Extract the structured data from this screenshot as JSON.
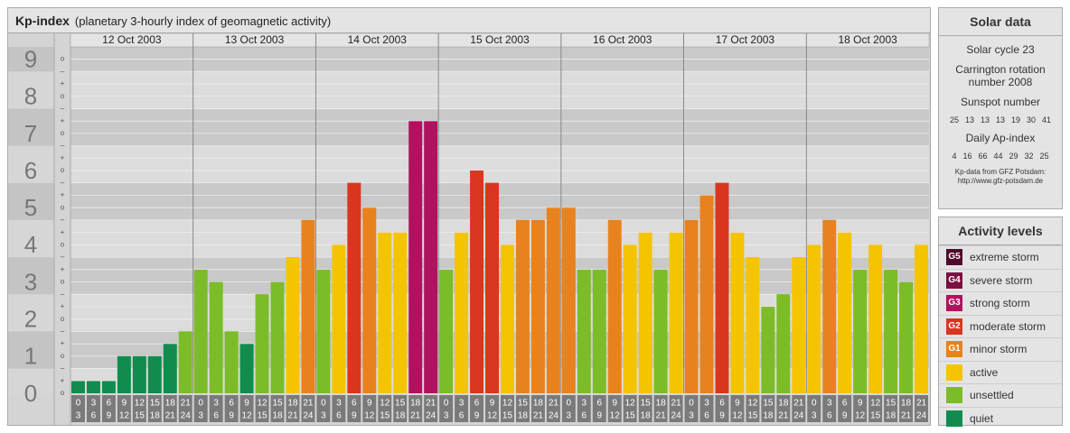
{
  "chart_data": {
    "type": "bar",
    "title": "Kp-index",
    "subtitle": "(planetary 3-hourly index of geomagnetic activity)",
    "days": [
      "12 Oct 2003",
      "13 Oct 2003",
      "14 Oct 2003",
      "15 Oct 2003",
      "16 Oct 2003",
      "17 Oct 2003",
      "18 Oct 2003"
    ],
    "hour_slots": [
      {
        "from": "0",
        "to": "3"
      },
      {
        "from": "3",
        "to": "6"
      },
      {
        "from": "6",
        "to": "9"
      },
      {
        "from": "9",
        "to": "12"
      },
      {
        "from": "12",
        "to": "15"
      },
      {
        "from": "15",
        "to": "18"
      },
      {
        "from": "18",
        "to": "21"
      },
      {
        "from": "21",
        "to": "24"
      }
    ],
    "values": [
      0.33,
      0.33,
      0.33,
      1,
      1,
      1,
      1.33,
      1.67,
      3.33,
      3,
      1.67,
      1.33,
      2.67,
      3,
      3.67,
      4.67,
      3.33,
      4,
      5.67,
      5,
      4.33,
      4.33,
      7.33,
      7.33,
      3.33,
      4.33,
      6,
      5.67,
      4,
      4.67,
      4.67,
      5,
      5,
      3.33,
      3.33,
      4.67,
      4,
      4.33,
      3.33,
      4.33,
      4.67,
      5.33,
      5.67,
      4.33,
      3.67,
      2.33,
      2.67,
      3.67,
      4,
      4.67,
      4.33,
      3.33,
      4,
      3.33,
      3,
      4
    ],
    "colors": [
      "#118c4e",
      "#118c4e",
      "#118c4e",
      "#118c4e",
      "#118c4e",
      "#118c4e",
      "#118c4e",
      "#7cbc28",
      "#7cbc28",
      "#7cbc28",
      "#7cbc28",
      "#118c4e",
      "#7cbc28",
      "#7cbc28",
      "#f5c400",
      "#e8821e",
      "#7cbc28",
      "#f5c400",
      "#d9361f",
      "#e8821e",
      "#f5c400",
      "#f5c400",
      "#b0125f",
      "#b0125f",
      "#7cbc28",
      "#f5c400",
      "#d9361f",
      "#d9361f",
      "#f5c400",
      "#e8821e",
      "#e8821e",
      "#e8821e",
      "#e8821e",
      "#7cbc28",
      "#7cbc28",
      "#e8821e",
      "#f5c400",
      "#f5c400",
      "#7cbc28",
      "#f5c400",
      "#e8821e",
      "#e8821e",
      "#d9361f",
      "#f5c400",
      "#f5c400",
      "#7cbc28",
      "#7cbc28",
      "#f5c400",
      "#f5c400",
      "#e8821e",
      "#f5c400",
      "#7cbc28",
      "#f5c400",
      "#7cbc28",
      "#7cbc28",
      "#f5c400"
    ],
    "ylim": [
      0,
      9.33
    ],
    "yticks": [
      0,
      1,
      2,
      3,
      4,
      5,
      6,
      7,
      8,
      9
    ],
    "minor_tick_labels": [
      "–",
      "o",
      "+"
    ]
  },
  "solar_data": {
    "title": "Solar data",
    "cycle": "Solar cycle 23",
    "rotation": "Carrington rotation number 2008",
    "sunspot_title": "Sunspot number",
    "sunspot": [
      25,
      13,
      13,
      13,
      19,
      30,
      41
    ],
    "ap_title": "Daily Ap-index",
    "ap": [
      4,
      16,
      66,
      44,
      29,
      32,
      25
    ],
    "source": "Kp-data from GFZ Potsdam:",
    "url": "http://www.gfz-potsdam.de"
  },
  "activity_levels": {
    "title": "Activity levels",
    "items": [
      {
        "badge": "G5",
        "label": "extreme storm",
        "color": "#4f0a2c"
      },
      {
        "badge": "G4",
        "label": "severe storm",
        "color": "#7a1040"
      },
      {
        "badge": "G3",
        "label": "strong storm",
        "color": "#b0125f"
      },
      {
        "badge": "G2",
        "label": "moderate storm",
        "color": "#d9361f"
      },
      {
        "badge": "G1",
        "label": "minor storm",
        "color": "#e8821e"
      },
      {
        "label": "active",
        "color": "#f5c400"
      },
      {
        "label": "unsettled",
        "color": "#7cbc28"
      },
      {
        "label": "quiet",
        "color": "#118c4e"
      }
    ]
  }
}
